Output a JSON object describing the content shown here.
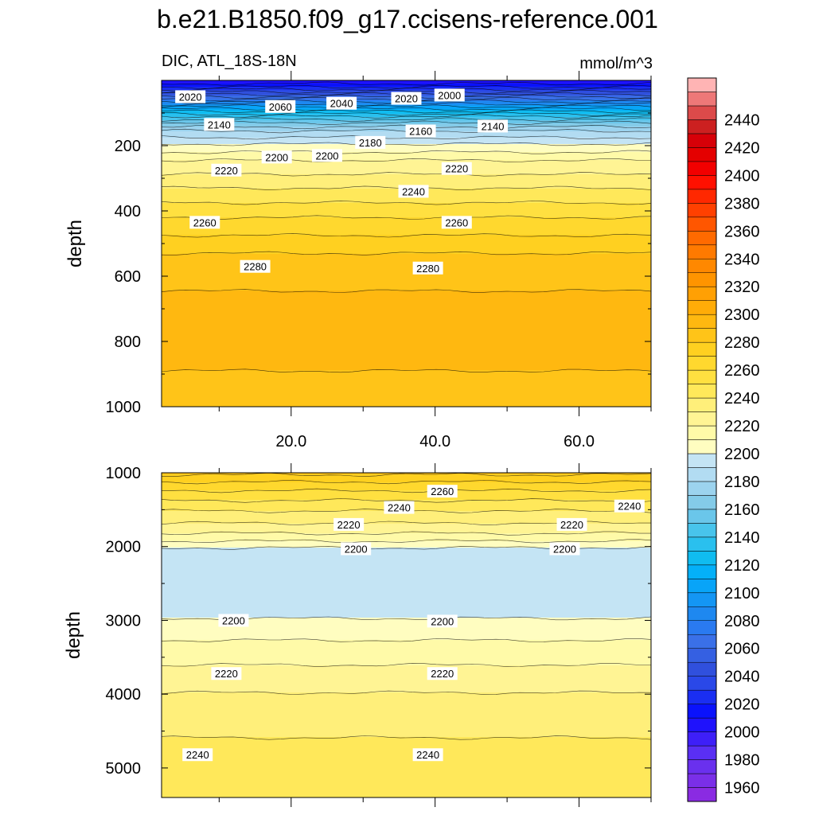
{
  "chart_data": {
    "type": "heatmap",
    "title": "b.e21.B1850.f09_g17.ccisens-reference.001",
    "subtitle_left": "DIC, ATL_18S-18N",
    "subtitle_right": "mmol/m^3",
    "colorbar": {
      "levels": [
        1950,
        1960,
        1970,
        1980,
        1990,
        2000,
        2010,
        2020,
        2030,
        2040,
        2050,
        2060,
        2070,
        2080,
        2090,
        2100,
        2110,
        2120,
        2130,
        2140,
        2150,
        2160,
        2170,
        2180,
        2190,
        2200,
        2210,
        2220,
        2230,
        2240,
        2250,
        2260,
        2270,
        2280,
        2290,
        2300,
        2310,
        2320,
        2330,
        2340,
        2350,
        2360,
        2370,
        2380,
        2390,
        2400,
        2410,
        2420,
        2430,
        2440,
        2450,
        2460
      ],
      "tick_labels": [
        "1960",
        "1980",
        "2000",
        "2020",
        "2040",
        "2060",
        "2080",
        "2100",
        "2120",
        "2140",
        "2160",
        "2180",
        "2200",
        "2220",
        "2240",
        "2260",
        "2280",
        "2300",
        "2320",
        "2340",
        "2360",
        "2380",
        "2400",
        "2420",
        "2440"
      ],
      "colors": [
        "#8a2be2",
        "#7a2fe8",
        "#6a30ee",
        "#5a2ff3",
        "#3e1ff8",
        "#1f12fc",
        "#0a12fc",
        "#1a2ef2",
        "#2a48e8",
        "#3050dd",
        "#3560e2",
        "#3a70e8",
        "#2a7af0",
        "#1e88f0",
        "#1496f4",
        "#08a4f8",
        "#04b0f8",
        "#10bcf0",
        "#2ac0ee",
        "#48c4ec",
        "#6ac6ea",
        "#84cbe8",
        "#9cd3ee",
        "#b2dcf2",
        "#c4e4f4",
        "#fffdc0",
        "#fffaa8",
        "#fff494",
        "#ffef7a",
        "#ffe85a",
        "#ffe040",
        "#ffd82e",
        "#ffd020",
        "#ffc418",
        "#ffb810",
        "#ffac08",
        "#ffa004",
        "#ff9400",
        "#ff8800",
        "#ff7a00",
        "#ff6a00",
        "#ff5600",
        "#ff4000",
        "#ff2800",
        "#ff1000",
        "#f20000",
        "#e40000",
        "#d60008",
        "#cc2020",
        "#dc4a4a",
        "#ee7878",
        "#ffb4b4"
      ]
    },
    "upper_panel": {
      "ylabel": "depth",
      "ylim": [
        0,
        1000
      ],
      "xlim": [
        2,
        70
      ],
      "yticks": [
        200,
        400,
        600,
        800,
        1000
      ],
      "ytick_labels": [
        "200",
        "400",
        "600",
        "800",
        "1000"
      ],
      "xticks": [
        20,
        40,
        60
      ],
      "xtick_labels": [
        "20.0",
        "40.0",
        "60.0"
      ],
      "profile": [
        {
          "depth": 5,
          "value": 2005
        },
        {
          "depth": 20,
          "value": 2020
        },
        {
          "depth": 35,
          "value": 2040
        },
        {
          "depth": 50,
          "value": 2060
        },
        {
          "depth": 65,
          "value": 2080
        },
        {
          "depth": 80,
          "value": 2100
        },
        {
          "depth": 95,
          "value": 2120
        },
        {
          "depth": 110,
          "value": 2140
        },
        {
          "depth": 130,
          "value": 2160
        },
        {
          "depth": 155,
          "value": 2180
        },
        {
          "depth": 195,
          "value": 2200
        },
        {
          "depth": 245,
          "value": 2220
        },
        {
          "depth": 330,
          "value": 2240
        },
        {
          "depth": 420,
          "value": 2260
        },
        {
          "depth": 530,
          "value": 2280
        },
        {
          "depth": 680,
          "value": 2293
        },
        {
          "depth": 800,
          "value": 2295
        },
        {
          "depth": 890,
          "value": 2290
        },
        {
          "depth": 1000,
          "value": 2284
        }
      ],
      "contour_labels": [
        {
          "text": "2020",
          "x": 6,
          "depth": 50
        },
        {
          "text": "2060",
          "x": 18.5,
          "depth": 80
        },
        {
          "text": "2040",
          "x": 27,
          "depth": 70
        },
        {
          "text": "2020",
          "x": 36,
          "depth": 55
        },
        {
          "text": "2000",
          "x": 42,
          "depth": 45
        },
        {
          "text": "2140",
          "x": 10,
          "depth": 135
        },
        {
          "text": "2160",
          "x": 38,
          "depth": 155
        },
        {
          "text": "2140",
          "x": 48,
          "depth": 140
        },
        {
          "text": "2180",
          "x": 31,
          "depth": 190
        },
        {
          "text": "2200",
          "x": 18,
          "depth": 235
        },
        {
          "text": "2200",
          "x": 25,
          "depth": 230
        },
        {
          "text": "2220",
          "x": 11,
          "depth": 275
        },
        {
          "text": "2220",
          "x": 43,
          "depth": 270
        },
        {
          "text": "2240",
          "x": 37,
          "depth": 340
        },
        {
          "text": "2260",
          "x": 8,
          "depth": 435
        },
        {
          "text": "2260",
          "x": 43,
          "depth": 435
        },
        {
          "text": "2280",
          "x": 15,
          "depth": 570
        },
        {
          "text": "2280",
          "x": 39,
          "depth": 575
        }
      ]
    },
    "lower_panel": {
      "ylabel": "depth",
      "ylim": [
        1000,
        5400
      ],
      "xlim": [
        2,
        70
      ],
      "yticks": [
        1000,
        2000,
        3000,
        4000,
        5000
      ],
      "ytick_labels": [
        "1000",
        "2000",
        "3000",
        "4000",
        "5000"
      ],
      "profile": [
        {
          "depth": 1000,
          "value": 2283
        },
        {
          "depth": 1080,
          "value": 2274
        },
        {
          "depth": 1180,
          "value": 2265
        },
        {
          "depth": 1280,
          "value": 2257
        },
        {
          "depth": 1390,
          "value": 2249
        },
        {
          "depth": 1500,
          "value": 2241
        },
        {
          "depth": 1640,
          "value": 2233
        },
        {
          "depth": 1810,
          "value": 2221
        },
        {
          "depth": 2000,
          "value": 2203
        },
        {
          "depth": 2040,
          "value": 2196
        },
        {
          "depth": 2950,
          "value": 2196
        },
        {
          "depth": 2990,
          "value": 2203
        },
        {
          "depth": 3350,
          "value": 2212
        },
        {
          "depth": 3700,
          "value": 2223
        },
        {
          "depth": 4100,
          "value": 2233
        },
        {
          "depth": 4800,
          "value": 2243
        },
        {
          "depth": 5400,
          "value": 2247
        }
      ],
      "contour_labels": [
        {
          "text": "2260",
          "x": 41,
          "depth": 1250
        },
        {
          "text": "2240",
          "x": 35,
          "depth": 1470
        },
        {
          "text": "2240",
          "x": 67,
          "depth": 1450
        },
        {
          "text": "2220",
          "x": 28,
          "depth": 1700
        },
        {
          "text": "2220",
          "x": 59,
          "depth": 1700
        },
        {
          "text": "2200",
          "x": 29,
          "depth": 2030
        },
        {
          "text": "2200",
          "x": 58,
          "depth": 2030
        },
        {
          "text": "2200",
          "x": 12,
          "depth": 3000
        },
        {
          "text": "2200",
          "x": 41,
          "depth": 3010
        },
        {
          "text": "2220",
          "x": 11,
          "depth": 3720
        },
        {
          "text": "2220",
          "x": 41,
          "depth": 3720
        },
        {
          "text": "2240",
          "x": 7,
          "depth": 4820
        },
        {
          "text": "2240",
          "x": 39,
          "depth": 4820
        }
      ]
    }
  }
}
